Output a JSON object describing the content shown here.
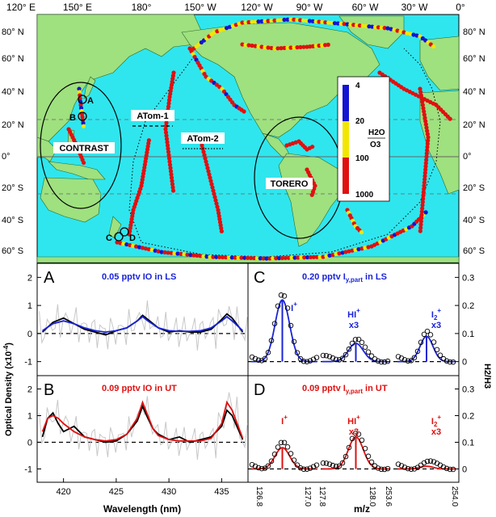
{
  "map": {
    "top_lon_labels": [
      "120° E",
      "150° E",
      "180°",
      "150° W",
      "120° W",
      "90° W",
      "60° W",
      "30° W",
      "0°"
    ],
    "lat_labels": [
      "80° N",
      "60° N",
      "40° N",
      "20° N",
      "0°",
      "20° S",
      "40° S",
      "60° S"
    ],
    "campaigns": {
      "contrast": "CONTRAST",
      "torero": "TORERO",
      "atom1": "ATom-1",
      "atom2": "ATom-2"
    },
    "point_labels": {
      "a": "A",
      "b": "B",
      "c": "C",
      "d": "D"
    },
    "colorbar": {
      "ticks": [
        "4",
        "20",
        "100",
        "1000"
      ],
      "label_top": "H2O",
      "label_bottom": "O3",
      "colors": {
        "low": "#1414d2",
        "mid": "#f2e600",
        "high": "#e01010"
      }
    },
    "colors": {
      "ocean": "#2fe6ee",
      "land": "#9fe07f",
      "outline": "#000000"
    }
  },
  "panels": {
    "A": {
      "letter": "A",
      "title": "0.05 pptv IO in LS",
      "color": "#1a24d8"
    },
    "B": {
      "letter": "B",
      "title": "0.09 pptv IO in UT",
      "color": "#e01010"
    },
    "C": {
      "letter": "C",
      "title_main": "0.20 pptv I",
      "title_sub": "y,part",
      "title_tail": " in LS",
      "color": "#1a24d8"
    },
    "D": {
      "letter": "D",
      "title_main": "0.09 pptv I",
      "title_sub": "y,part",
      "title_tail": " in UT",
      "color": "#e01010"
    }
  },
  "axes": {
    "left_ylabel": "Optical Density (x10",
    "left_ylabel_exp": "-4",
    "left_ylabel_tail": ")",
    "left_yticks": [
      "2",
      "1",
      "0",
      "-1"
    ],
    "left_xlabel": "Wavelength (nm)",
    "left_xticks": [
      "420",
      "425",
      "430",
      "435"
    ],
    "right_ylabel": "H2/H3",
    "right_yticks": [
      "0.3",
      "0.2",
      "0.1",
      "0"
    ],
    "right_xlabel": "m/z",
    "right_xticks": [
      "126.8",
      "127.0",
      "127.8",
      "128.0",
      "253.6",
      "254.0"
    ]
  },
  "mass_labels": {
    "I": "I",
    "HI": "HI",
    "I2": "I",
    "I2_sub": "2",
    "plus": "+",
    "x3": "x3"
  },
  "chart_data": [
    {
      "id": "A",
      "type": "line",
      "xlabel": "Wavelength (nm)",
      "ylabel": "Optical Density (x10-4)",
      "xlim": [
        417.5,
        437.5
      ],
      "ylim": [
        -1.5,
        2.5
      ],
      "series": [
        {
          "x": [
            418,
            419,
            420,
            421,
            422,
            423,
            424,
            425,
            426,
            427,
            427.5,
            428,
            429,
            430,
            431,
            432,
            433,
            434,
            435,
            435.5,
            436,
            437
          ],
          "y": [
            0.05,
            0.4,
            0.55,
            0.35,
            0.15,
            0.05,
            -0.05,
            0.1,
            0.2,
            0.45,
            0.65,
            0.5,
            0.2,
            0.05,
            0.1,
            0.05,
            0.05,
            0.15,
            0.5,
            0.7,
            0.55,
            0.05
          ]
        },
        {
          "x": [
            418,
            419,
            420,
            421,
            422,
            423,
            424,
            425,
            426,
            427,
            427.5,
            428,
            429,
            430,
            431,
            432,
            433,
            434,
            435,
            435.5,
            436,
            437
          ],
          "y": [
            0.1,
            0.35,
            0.45,
            0.35,
            0.2,
            0.1,
            0.05,
            0.1,
            0.2,
            0.45,
            0.6,
            0.45,
            0.2,
            0.1,
            0.08,
            0.08,
            0.1,
            0.2,
            0.45,
            0.6,
            0.45,
            0.1
          ]
        }
      ]
    },
    {
      "id": "B",
      "type": "line",
      "xlabel": "Wavelength (nm)",
      "ylabel": "Optical Density (x10-4)",
      "xlim": [
        417.5,
        437.5
      ],
      "ylim": [
        -1.5,
        2.5
      ],
      "series": [
        {
          "x": [
            418,
            418.5,
            419,
            419.5,
            420,
            421,
            422,
            423,
            424,
            425,
            426,
            427,
            427.5,
            428,
            428.5,
            429,
            430,
            431,
            432,
            433,
            434,
            435,
            435.5,
            436,
            437
          ],
          "y": [
            0.2,
            0.9,
            1.1,
            0.7,
            0.4,
            0.6,
            0.2,
            0.1,
            0.0,
            0.05,
            0.3,
            0.8,
            1.35,
            0.9,
            0.5,
            0.3,
            0.1,
            0.2,
            0.0,
            0.1,
            0.2,
            0.6,
            1.2,
            1.0,
            0.1
          ]
        },
        {
          "x": [
            418,
            418.5,
            419,
            419.5,
            420,
            421,
            422,
            423,
            424,
            425,
            426,
            427,
            427.5,
            428,
            428.5,
            429,
            430,
            431,
            432,
            433,
            434,
            435,
            435.5,
            436,
            437
          ],
          "y": [
            0.4,
            0.9,
            1.0,
            0.9,
            0.7,
            0.4,
            0.2,
            0.1,
            0.05,
            0.1,
            0.3,
            0.9,
            1.5,
            1.0,
            0.5,
            0.25,
            0.1,
            0.05,
            0.05,
            0.05,
            0.15,
            0.7,
            1.5,
            1.2,
            0.15
          ]
        }
      ]
    },
    {
      "id": "C",
      "type": "scatter",
      "xlabel": "m/z",
      "ylabel": "H2/H3",
      "ylim": [
        -0.05,
        0.35
      ],
      "groups": [
        {
          "label": "I+",
          "xlim": [
            126.8,
            127.0
          ],
          "peak": 0.22,
          "scale": ""
        },
        {
          "label": "HI+",
          "xlim": [
            127.8,
            128.0
          ],
          "peak": 0.065,
          "scale": "x3"
        },
        {
          "label": "I2+",
          "xlim": [
            253.6,
            254.0
          ],
          "peak": 0.09,
          "scale": "x3"
        }
      ]
    },
    {
      "id": "D",
      "type": "scatter",
      "xlabel": "m/z",
      "ylabel": "H2/H3",
      "ylim": [
        -0.05,
        0.35
      ],
      "groups": [
        {
          "label": "I+",
          "xlim": [
            126.8,
            127.0
          ],
          "peak": 0.08,
          "scale": ""
        },
        {
          "label": "HI+",
          "xlim": [
            127.8,
            128.0
          ],
          "peak": 0.12,
          "scale": "x3"
        },
        {
          "label": "I2+",
          "xlim": [
            253.6,
            254.0
          ],
          "peak": 0.01,
          "scale": "x3"
        }
      ]
    }
  ]
}
